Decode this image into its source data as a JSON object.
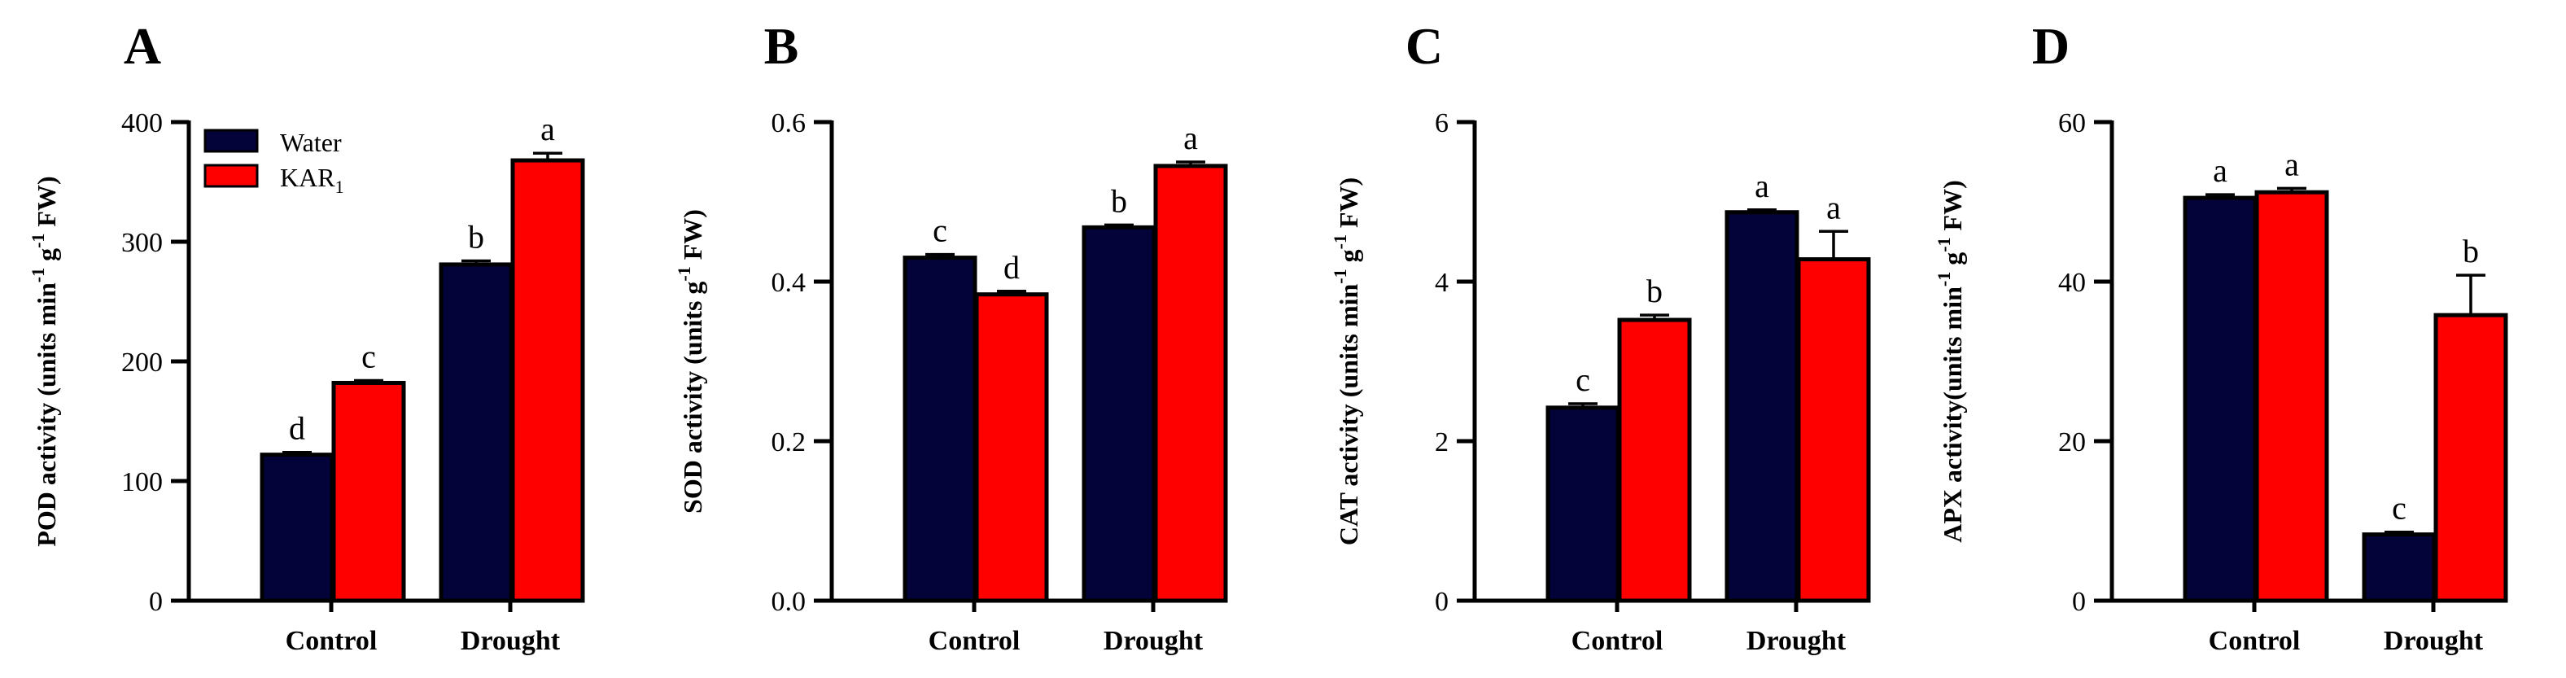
{
  "chart_data": [
    {
      "type": "bar",
      "panel": "A",
      "ylabel_main": "POD activity (units min",
      "ylabel_sup1": "-1",
      "ylabel_mid": " g",
      "ylabel_sup2": "-1",
      "ylabel_end": " FW)",
      "categories": [
        "Control",
        "Drought"
      ],
      "ylim": [
        0,
        400
      ],
      "yticks": [
        0,
        100,
        200,
        300,
        400
      ],
      "series": [
        {
          "name": "Water",
          "values": [
            122,
            281
          ],
          "errors": [
            2,
            3
          ],
          "letters": [
            "d",
            "b"
          ]
        },
        {
          "name": "KAR1",
          "values": [
            182,
            368
          ],
          "errors": [
            2,
            6
          ],
          "letters": [
            "c",
            "a"
          ]
        }
      ],
      "legend": {
        "water": "Water",
        "kar": "KAR",
        "kar_sub": "1"
      }
    },
    {
      "type": "bar",
      "panel": "B",
      "ylabel_main": "SOD activity (units g",
      "ylabel_sup1": "-1",
      "ylabel_mid": "",
      "ylabel_sup2": "",
      "ylabel_end": " FW)",
      "categories": [
        "Control",
        "Drought"
      ],
      "ylim": [
        0,
        0.6
      ],
      "yticks": [
        "0.0",
        "0.2",
        "0.4",
        "0.6"
      ],
      "series": [
        {
          "name": "Water",
          "values": [
            0.43,
            0.468
          ],
          "errors": [
            0.004,
            0.003
          ],
          "letters": [
            "c",
            "b"
          ]
        },
        {
          "name": "KAR1",
          "values": [
            0.384,
            0.545
          ],
          "errors": [
            0.004,
            0.005
          ],
          "letters": [
            "d",
            "a"
          ]
        }
      ]
    },
    {
      "type": "bar",
      "panel": "C",
      "ylabel_main": "CAT activity (units min",
      "ylabel_sup1": "-1",
      "ylabel_mid": " g",
      "ylabel_sup2": "-1",
      "ylabel_end": " FW)",
      "categories": [
        "Control",
        "Drought"
      ],
      "ylim": [
        0,
        6
      ],
      "yticks": [
        0,
        2,
        4,
        6
      ],
      "series": [
        {
          "name": "Water",
          "values": [
            2.42,
            4.87
          ],
          "errors": [
            0.05,
            0.03
          ],
          "letters": [
            "c",
            "a"
          ]
        },
        {
          "name": "KAR1",
          "values": [
            3.52,
            4.28
          ],
          "errors": [
            0.06,
            0.35
          ],
          "letters": [
            "b",
            "a"
          ]
        }
      ]
    },
    {
      "type": "bar",
      "panel": "D",
      "ylabel_main": "APX activity(units min",
      "ylabel_sup1": "-1",
      "ylabel_mid": " g",
      "ylabel_sup2": "-1",
      "ylabel_end": " FW)",
      "categories": [
        "Control",
        "Drought"
      ],
      "ylim": [
        0,
        60
      ],
      "yticks": [
        0,
        20,
        40,
        60
      ],
      "series": [
        {
          "name": "Water",
          "values": [
            50.5,
            8.3
          ],
          "errors": [
            0.4,
            0.3
          ],
          "letters": [
            "a",
            "c"
          ]
        },
        {
          "name": "KAR1",
          "values": [
            51.2,
            35.8
          ],
          "errors": [
            0.5,
            5.0
          ],
          "letters": [
            "a",
            "b"
          ]
        }
      ]
    }
  ],
  "colors": {
    "water": "#030339",
    "kar": "#fe0000"
  }
}
